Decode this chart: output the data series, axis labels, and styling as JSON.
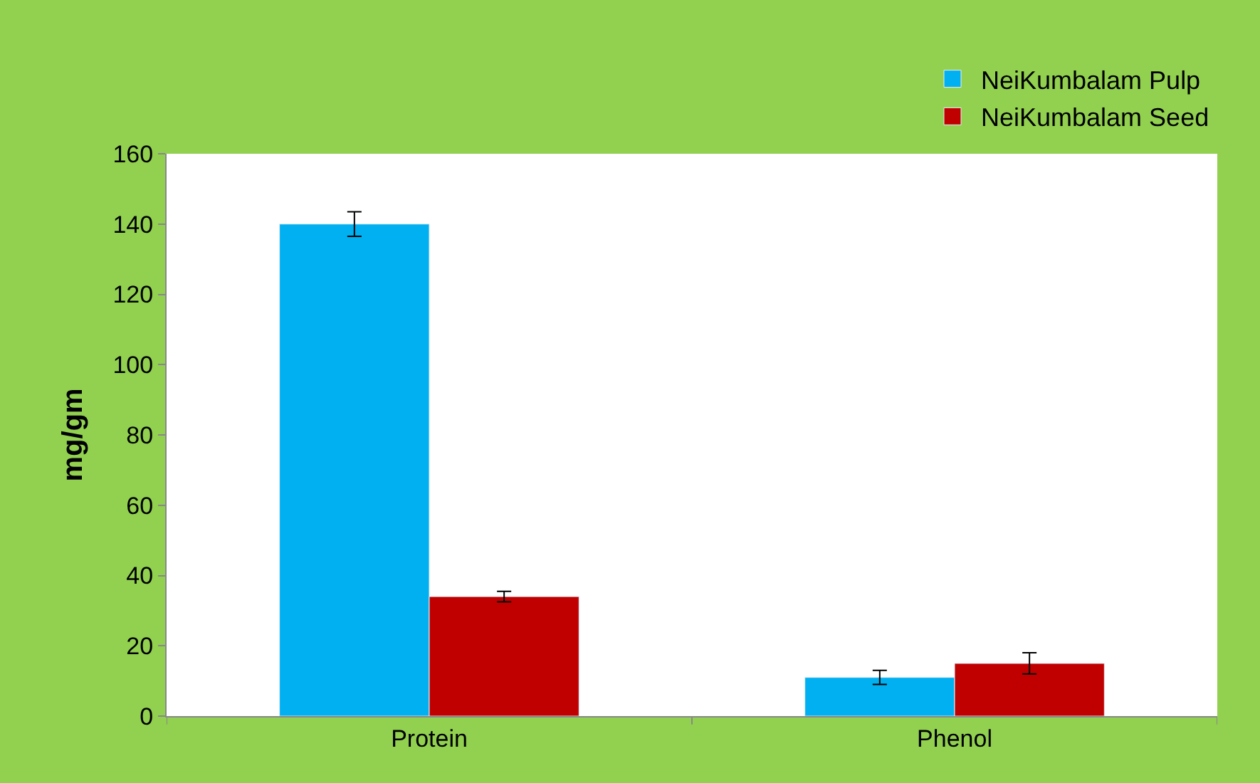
{
  "chart_data": {
    "type": "bar",
    "ylabel": "mg/gm",
    "categories": [
      "Protein",
      "Phenol"
    ],
    "series": [
      {
        "name": "NeiKumbalam Pulp",
        "color": "#00b0f0",
        "values": [
          140,
          11
        ],
        "errors": [
          3.5,
          2
        ]
      },
      {
        "name": "NeiKumbalam Seed",
        "color": "#c00000",
        "values": [
          34,
          15
        ],
        "errors": [
          1.5,
          3
        ]
      }
    ],
    "ylim": [
      0,
      160
    ],
    "yticks": [
      0,
      20,
      40,
      60,
      80,
      100,
      120,
      140,
      160
    ],
    "legend": "top right"
  }
}
